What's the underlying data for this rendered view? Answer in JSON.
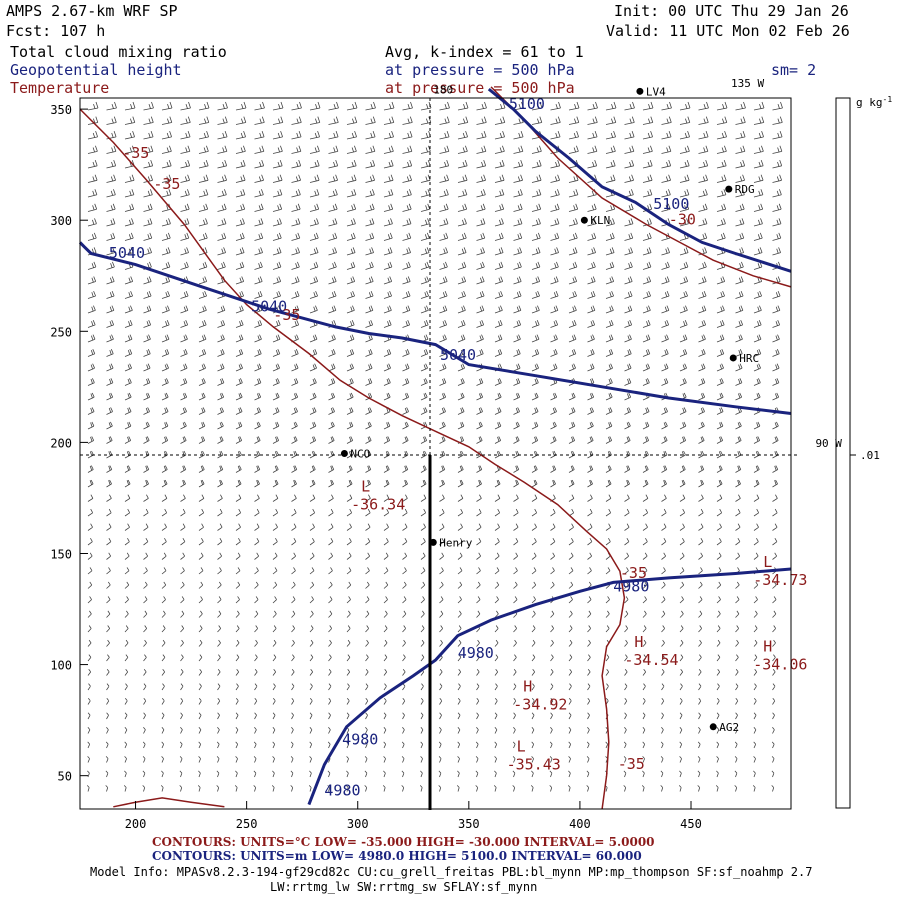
{
  "header": {
    "model": "AMPS 2.67-km WRF SP",
    "init": "Init: 00 UTC Thu 29 Jan 26",
    "fcst": "Fcst: 107 h",
    "valid": "Valid: 11 UTC Mon 02 Feb 26",
    "field1": "Total cloud mixing ratio",
    "field2": "Geopotential height",
    "field3": "Temperature",
    "avg": "Avg, k-index =  61 to   1",
    "pressure_label": "at pressure =  500 hPa",
    "pressure_label2": "at pressure =  500 hPa",
    "smoothing": "sm= 2"
  },
  "colorbar": {
    "unit": "g kg",
    "exp": "-1",
    "value": ".01"
  },
  "chart_data": {
    "type": "contour",
    "xlim": [
      175,
      495
    ],
    "ylim": [
      35,
      355
    ],
    "x_ticks": [
      200,
      250,
      300,
      350,
      400,
      450
    ],
    "y_ticks": [
      50,
      100,
      150,
      200,
      250,
      300,
      350
    ],
    "meridian_labels": [
      {
        "text": "180",
        "x": 334,
        "y": 357
      },
      {
        "text": "135 W",
        "x": 468,
        "y": 360
      },
      {
        "text": "90 W",
        "x": 506,
        "y": 198
      }
    ],
    "height_contours": [
      {
        "level": 5040,
        "points": [
          [
            175,
            290
          ],
          [
            177,
            288
          ],
          [
            180,
            285
          ],
          [
            200,
            280
          ],
          [
            230,
            270
          ],
          [
            260,
            260
          ],
          [
            290,
            252
          ],
          [
            305,
            249
          ],
          [
            320,
            247
          ],
          [
            335,
            244
          ],
          [
            350,
            235
          ],
          [
            380,
            230
          ],
          [
            410,
            225
          ],
          [
            440,
            220
          ],
          [
            470,
            216
          ],
          [
            495,
            213
          ]
        ]
      },
      {
        "level": 5100,
        "points": [
          [
            359,
            359
          ],
          [
            370,
            350
          ],
          [
            380,
            340
          ],
          [
            395,
            328
          ],
          [
            410,
            315
          ],
          [
            425,
            308
          ],
          [
            440,
            298
          ],
          [
            455,
            290
          ],
          [
            470,
            285
          ],
          [
            495,
            277
          ]
        ]
      },
      {
        "level": 4980,
        "points": [
          [
            278,
            37
          ],
          [
            285,
            55
          ],
          [
            295,
            72
          ],
          [
            310,
            85
          ],
          [
            325,
            95
          ],
          [
            335,
            102
          ],
          [
            345,
            113
          ],
          [
            360,
            120
          ],
          [
            380,
            127
          ],
          [
            400,
            133
          ],
          [
            415,
            137
          ],
          [
            440,
            139
          ],
          [
            470,
            141
          ],
          [
            495,
            143
          ]
        ]
      }
    ],
    "temp_contours": [
      {
        "level": -35,
        "points": [
          [
            175,
            350
          ],
          [
            190,
            335
          ],
          [
            205,
            318
          ],
          [
            222,
            298
          ],
          [
            240,
            273
          ],
          [
            250,
            262
          ],
          [
            262,
            252
          ],
          [
            278,
            240
          ],
          [
            292,
            228
          ],
          [
            305,
            220
          ],
          [
            320,
            212
          ],
          [
            335,
            205
          ],
          [
            350,
            198
          ],
          [
            362,
            190
          ],
          [
            375,
            182
          ],
          [
            390,
            172
          ],
          [
            403,
            160
          ],
          [
            412,
            152
          ],
          [
            418,
            142
          ],
          [
            420,
            130
          ],
          [
            418,
            118
          ],
          [
            412,
            108
          ],
          [
            410,
            95
          ],
          [
            412,
            80
          ],
          [
            413,
            65
          ],
          [
            412,
            50
          ],
          [
            410,
            35
          ]
        ]
      },
      {
        "level": -30,
        "points": [
          [
            360,
            360
          ],
          [
            375,
            345
          ],
          [
            390,
            328
          ],
          [
            410,
            310
          ],
          [
            430,
            298
          ],
          [
            445,
            290
          ],
          [
            460,
            282
          ],
          [
            478,
            275
          ],
          [
            495,
            270
          ]
        ]
      },
      {
        "level": -35,
        "points": [
          [
            190,
            36
          ],
          [
            200,
            38
          ],
          [
            212,
            40
          ],
          [
            225,
            38
          ],
          [
            240,
            36
          ]
        ]
      }
    ],
    "contour_labels": [
      {
        "text": "5100",
        "x": 368,
        "y": 350,
        "color": "blue"
      },
      {
        "text": "5100",
        "x": 433,
        "y": 305,
        "color": "blue"
      },
      {
        "text": "5040",
        "x": 188,
        "y": 283,
        "color": "blue"
      },
      {
        "text": "5040",
        "x": 252,
        "y": 259,
        "color": "blue"
      },
      {
        "text": "5040",
        "x": 337,
        "y": 237,
        "color": "blue"
      },
      {
        "text": "4980",
        "x": 415,
        "y": 133,
        "color": "blue"
      },
      {
        "text": "4980",
        "x": 345,
        "y": 103,
        "color": "blue"
      },
      {
        "text": "4980",
        "x": 293,
        "y": 64,
        "color": "blue"
      },
      {
        "text": "4980",
        "x": 285,
        "y": 41,
        "color": "blue"
      },
      {
        "text": "-35",
        "x": 194,
        "y": 328,
        "color": "red"
      },
      {
        "text": "-35",
        "x": 208,
        "y": 314,
        "color": "red"
      },
      {
        "text": "-35",
        "x": 262,
        "y": 255,
        "color": "red"
      },
      {
        "text": "-30",
        "x": 440,
        "y": 298,
        "color": "red"
      },
      {
        "text": "-35",
        "x": 418,
        "y": 139,
        "color": "red"
      },
      {
        "text": "-35",
        "x": 417,
        "y": 53,
        "color": "red"
      }
    ],
    "extrema": [
      {
        "type": "L",
        "value": "-36.34",
        "x": 297,
        "y": 177,
        "color": "red"
      },
      {
        "type": "L",
        "value": "-34.73",
        "x": 478,
        "y": 143,
        "color": "red"
      },
      {
        "type": "H",
        "value": "-34.54",
        "x": 420,
        "y": 107,
        "color": "red"
      },
      {
        "type": "H",
        "value": "-34.06",
        "x": 478,
        "y": 105,
        "color": "red"
      },
      {
        "type": "H",
        "value": "-34.92",
        "x": 370,
        "y": 87,
        "color": "red"
      },
      {
        "type": "L",
        "value": "-35.43",
        "x": 367,
        "y": 60,
        "color": "red"
      }
    ],
    "stations": [
      {
        "name": "RDG",
        "x": 467,
        "y": 314
      },
      {
        "name": "KLN",
        "x": 402,
        "y": 300
      },
      {
        "name": "HRC",
        "x": 469,
        "y": 238
      },
      {
        "name": "NCO",
        "x": 294,
        "y": 195
      },
      {
        "name": "Henry",
        "x": 334,
        "y": 155
      },
      {
        "name": "AG2",
        "x": 460,
        "y": 72
      },
      {
        "name": "LV4",
        "x": 427,
        "y": 358
      }
    ]
  },
  "footer": {
    "red_contours": "CONTOURS:  UNITS=°C  LOW=  -35.000      HIGH=  -30.000      INTERVAL=    5.0000",
    "blue_contours": "CONTOURS:  UNITS=m   LOW=   4980.0      HIGH=   5100.0      INTERVAL=    60.000",
    "model_info": "Model Info: MPASv8.2.3-194-gf29cd82c CU:cu_grell_freitas PBL:bl_mynn MP:mp_thompson SF:sf_noahmp 2.7",
    "model_info2": "LW:rrtmg_lw SW:rrtmg_sw SFLAY:sf_mynn"
  }
}
